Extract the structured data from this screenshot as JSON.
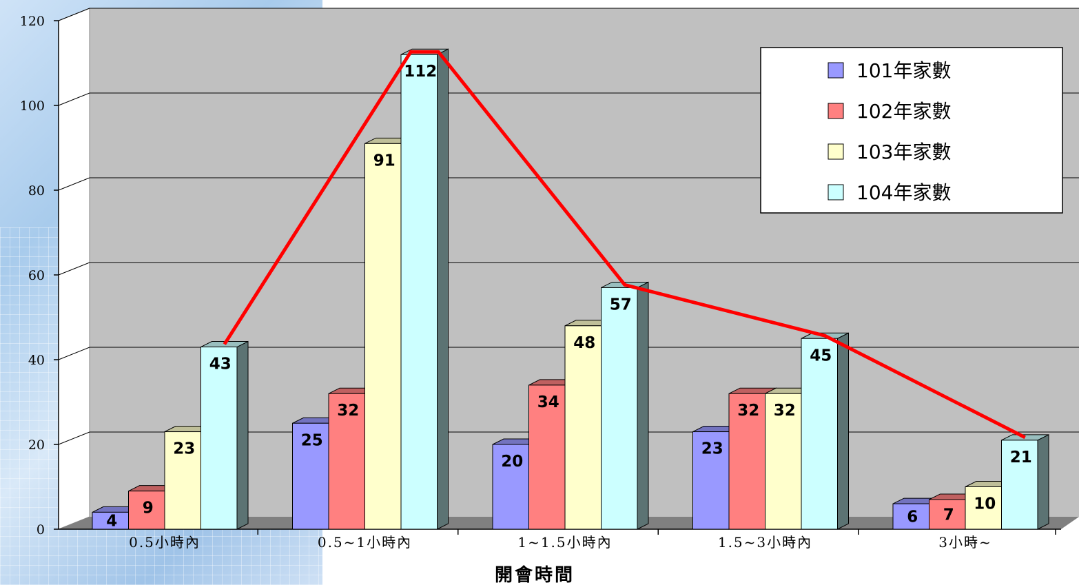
{
  "chart_data": {
    "type": "bar",
    "title": "",
    "xlabel": "開會時間",
    "ylabel": "",
    "ylim": [
      0,
      120
    ],
    "yticks": [
      "0",
      "20",
      "40",
      "60",
      "80",
      "100",
      "120"
    ],
    "grid": true,
    "legend_position": "top-right",
    "categories": [
      "0.5小時內",
      "0.5~1小時內",
      "1~1.5小時內",
      "1.5~3小時內",
      "3小時~"
    ],
    "series": [
      {
        "name": "101年家數",
        "color": "#9999ff",
        "values": [
          4,
          25,
          20,
          23,
          6
        ]
      },
      {
        "name": "102年家數",
        "color": "#ff8080",
        "values": [
          9,
          32,
          34,
          32,
          7
        ]
      },
      {
        "name": "103年家數",
        "color": "#ffffcc",
        "values": [
          23,
          91,
          48,
          32,
          10
        ]
      },
      {
        "name": "104年家數",
        "color": "#ccffff",
        "values": [
          43,
          112,
          57,
          45,
          21
        ]
      }
    ],
    "trend_line": {
      "series": "104年家數",
      "color": "#ff0000"
    }
  }
}
